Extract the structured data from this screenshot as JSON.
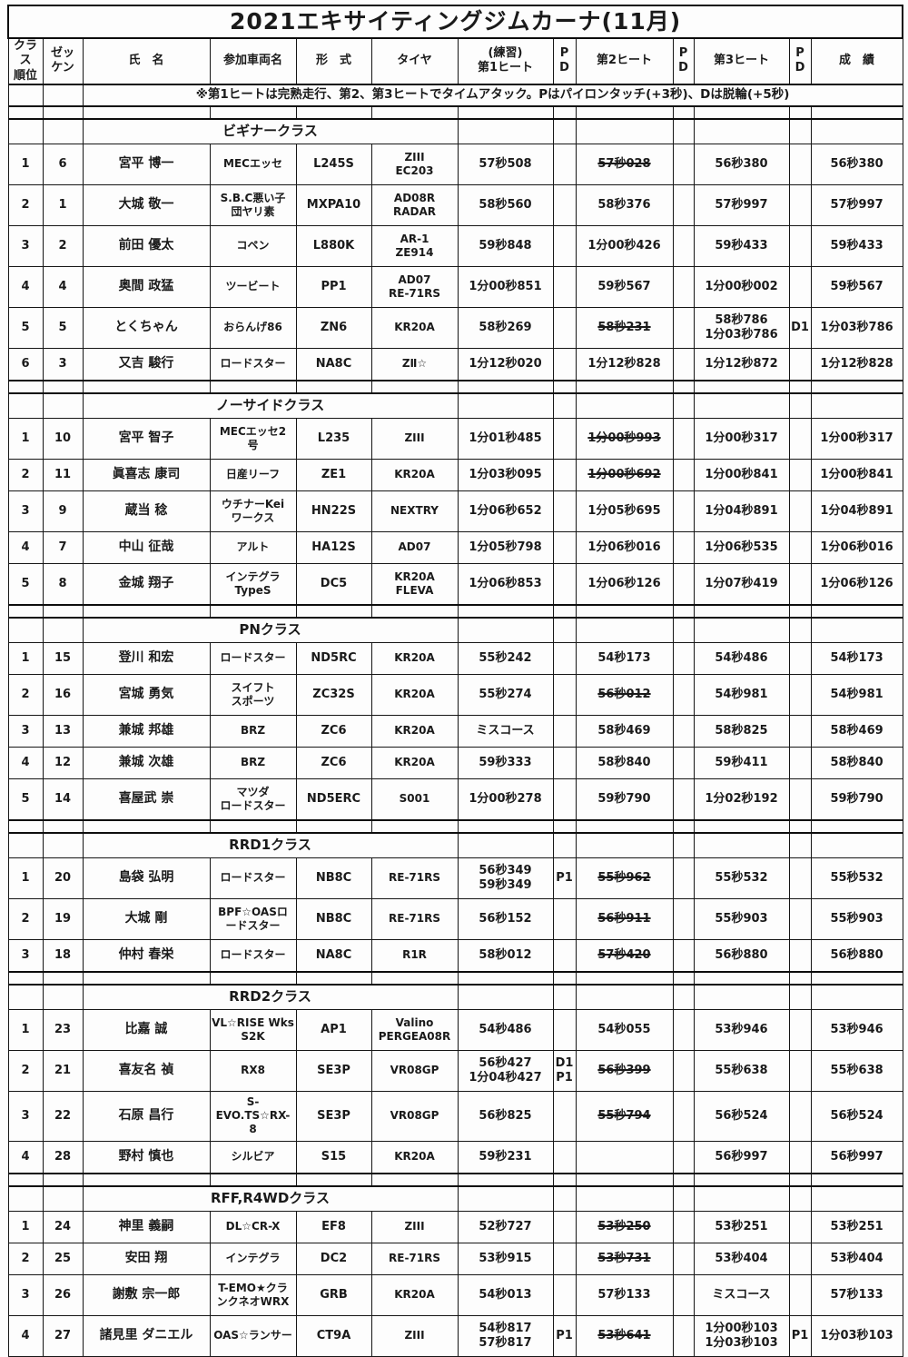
{
  "title": "2021エキサイティングジムカーナ(11月)",
  "note": "※第1ヒートは完熟走行、第2、第3ヒートでタイムアタック。Pはパイロンタッチ(+3秒)、Dは脱輪(+5秒)",
  "columns": [
    "クラス\n順位",
    "ゼッ\nケン",
    "氏　名",
    "参加車両名",
    "形　式",
    "タイヤ",
    "(練習)\n第1ヒート",
    "P\nD",
    "第2ヒート",
    "P\nD",
    "第3ヒート",
    "P\nD",
    "成　績"
  ],
  "column_keys": [
    "rank",
    "no",
    "name",
    "car",
    "model",
    "tire",
    "heat1",
    "pd1",
    "heat2",
    "pd2",
    "heat3",
    "pd3",
    "result"
  ],
  "colors": {
    "background": "#fdfdfd",
    "border": "#161616",
    "text": "#1a1a1a"
  },
  "classes": [
    {
      "name": "ビギナークラス",
      "rows": [
        {
          "rank": "1",
          "no": "6",
          "name": "宮平 博一",
          "car": "MECエッセ",
          "model": "L245S",
          "tire": "ZIII\nEC203",
          "heat1": "57秒508",
          "heat2": "57秒028",
          "strike": [
            "heat2"
          ],
          "heat3": "56秒380",
          "result": "56秒380"
        },
        {
          "rank": "2",
          "no": "1",
          "name": "大城 敬一",
          "car": "S.B.C悪い子\n団ヤリ素",
          "model": "MXPA10",
          "tire": "AD08R\nRADAR",
          "heat1": "58秒560",
          "heat2": "58秒376",
          "heat3": "57秒997",
          "result": "57秒997"
        },
        {
          "rank": "3",
          "no": "2",
          "name": "前田 優太",
          "car": "コペン",
          "model": "L880K",
          "tire": "AR-1\nZE914",
          "heat1": "59秒848",
          "heat2": "1分00秒426",
          "heat3": "59秒433",
          "result": "59秒433"
        },
        {
          "rank": "4",
          "no": "4",
          "name": "奥間 政猛",
          "car": "ツービート",
          "model": "PP1",
          "tire": "AD07\nRE-71RS",
          "heat1": "1分00秒851",
          "heat2": "59秒567",
          "heat3": "1分00秒002",
          "result": "59秒567"
        },
        {
          "rank": "5",
          "no": "5",
          "name": "とくちゃん",
          "car": "おらんげ86",
          "model": "ZN6",
          "tire": "KR20A",
          "heat1": "58秒269",
          "heat2": "58秒231",
          "strike": [
            "heat2"
          ],
          "heat3": "58秒786\n1分03秒786",
          "pd3": "D1",
          "result": "1分03秒786"
        },
        {
          "rank": "6",
          "no": "3",
          "name": "又吉 駿行",
          "car": "ロードスター",
          "model": "NA8C",
          "tire": "ZⅡ☆",
          "heat1": "1分12秒020",
          "heat2": "1分12秒828",
          "heat3": "1分12秒872",
          "result": "1分12秒828"
        }
      ]
    },
    {
      "name": "ノーサイドクラス",
      "rows": [
        {
          "rank": "1",
          "no": "10",
          "name": "宮平 智子",
          "car": "MECエッセ2\n号",
          "model": "L235",
          "tire": "ZIII",
          "heat1": "1分01秒485",
          "heat2": "1分00秒993",
          "strike": [
            "heat2"
          ],
          "heat3": "1分00秒317",
          "result": "1分00秒317"
        },
        {
          "rank": "2",
          "no": "11",
          "name": "眞喜志 康司",
          "car": "日産リーフ",
          "model": "ZE1",
          "tire": "KR20A",
          "heat1": "1分03秒095",
          "heat2": "1分00秒692",
          "strike": [
            "heat2"
          ],
          "heat3": "1分00秒841",
          "result": "1分00秒841"
        },
        {
          "rank": "3",
          "no": "9",
          "name": "蔵当 稔",
          "car": "ウチナーKei\nワークス",
          "model": "HN22S",
          "tire": "NEXTRY",
          "heat1": "1分06秒652",
          "heat2": "1分05秒695",
          "heat3": "1分04秒891",
          "result": "1分04秒891"
        },
        {
          "rank": "4",
          "no": "7",
          "name": "中山 征哉",
          "car": "アルト",
          "model": "HA12S",
          "tire": "AD07",
          "heat1": "1分05秒798",
          "heat2": "1分06秒016",
          "heat3": "1分06秒535",
          "result": "1分06秒016"
        },
        {
          "rank": "5",
          "no": "8",
          "name": "金城 翔子",
          "car": "インテグラ\nTypeS",
          "model": "DC5",
          "tire": "KR20A\nFLEVA",
          "heat1": "1分06秒853",
          "heat2": "1分06秒126",
          "heat3": "1分07秒419",
          "result": "1分06秒126"
        }
      ]
    },
    {
      "name": "PNクラス",
      "rows": [
        {
          "rank": "1",
          "no": "15",
          "name": "登川 和宏",
          "car": "ロードスター",
          "model": "ND5RC",
          "tire": "KR20A",
          "heat1": "55秒242",
          "heat2": "54秒173",
          "heat3": "54秒486",
          "result": "54秒173"
        },
        {
          "rank": "2",
          "no": "16",
          "name": "宮城 勇気",
          "car": "スイフト\nスポーツ",
          "model": "ZC32S",
          "tire": "KR20A",
          "heat1": "55秒274",
          "heat2": "56秒012",
          "strike": [
            "heat2"
          ],
          "heat3": "54秒981",
          "result": "54秒981"
        },
        {
          "rank": "3",
          "no": "13",
          "name": "兼城 邦雄",
          "car": "BRZ",
          "model": "ZC6",
          "tire": "KR20A",
          "heat1": "ミスコース",
          "heat2": "58秒469",
          "heat3": "58秒825",
          "result": "58秒469"
        },
        {
          "rank": "4",
          "no": "12",
          "name": "兼城 次雄",
          "car": "BRZ",
          "model": "ZC6",
          "tire": "KR20A",
          "heat1": "59秒333",
          "heat2": "58秒840",
          "heat3": "59秒411",
          "result": "58秒840"
        },
        {
          "rank": "5",
          "no": "14",
          "name": "喜屋武 崇",
          "car": "マツダ\nロードスター",
          "model": "ND5ERC",
          "tire": "S001",
          "heat1": "1分00秒278",
          "heat2": "59秒790",
          "heat3": "1分02秒192",
          "result": "59秒790"
        }
      ]
    },
    {
      "name": "RRD1クラス",
      "rows": [
        {
          "rank": "1",
          "no": "20",
          "name": "島袋 弘明",
          "car": "ロードスター",
          "model": "NB8C",
          "tire": "RE-71RS",
          "heat1": "56秒349\n59秒349",
          "pd1": "P1",
          "heat2": "55秒962",
          "strike": [
            "heat2"
          ],
          "heat3": "55秒532",
          "result": "55秒532"
        },
        {
          "rank": "2",
          "no": "19",
          "name": "大城 剛",
          "car": "BPF☆OASロ\nードスター",
          "model": "NB8C",
          "tire": "RE-71RS",
          "heat1": "56秒152",
          "heat2": "56秒911",
          "strike": [
            "heat2"
          ],
          "heat3": "55秒903",
          "result": "55秒903"
        },
        {
          "rank": "3",
          "no": "18",
          "name": "仲村 春栄",
          "car": "ロードスター",
          "model": "NA8C",
          "tire": "R1R",
          "heat1": "58秒012",
          "heat2": "57秒420",
          "strike": [
            "heat2"
          ],
          "heat3": "56秒880",
          "result": "56秒880"
        }
      ]
    },
    {
      "name": "RRD2クラス",
      "rows": [
        {
          "rank": "1",
          "no": "23",
          "name": "比嘉 誠",
          "car": "VL☆RISE Wks\nS2K",
          "model": "AP1",
          "tire": "Valino\nPERGEA08R",
          "heat1": "54秒486",
          "heat2": "54秒055",
          "heat3": "53秒946",
          "result": "53秒946"
        },
        {
          "rank": "2",
          "no": "21",
          "name": "喜友名 禎",
          "car": "RX8",
          "model": "SE3P",
          "tire": "VR08GP",
          "heat1": "56秒427\n1分04秒427",
          "pd1": "D1\nP1",
          "heat2": "56秒399",
          "strike": [
            "heat2"
          ],
          "heat3": "55秒638",
          "result": "55秒638"
        },
        {
          "rank": "3",
          "no": "22",
          "name": "石原 昌行",
          "car": "S-\nEVO.TS☆RX-\n8",
          "model": "SE3P",
          "tire": "VR08GP",
          "heat1": "56秒825",
          "heat2": "55秒794",
          "strike": [
            "heat2"
          ],
          "heat3": "56秒524",
          "result": "56秒524"
        },
        {
          "rank": "4",
          "no": "28",
          "name": "野村 慎也",
          "car": "シルビア",
          "model": "S15",
          "tire": "KR20A",
          "heat1": "59秒231",
          "heat2": "",
          "heat3": "56秒997",
          "result": "56秒997"
        }
      ]
    },
    {
      "name": "RFF,R4WDクラス",
      "rows": [
        {
          "rank": "1",
          "no": "24",
          "name": "神里 義嗣",
          "car": "DL☆CR-X",
          "model": "EF8",
          "tire": "ZIII",
          "heat1": "52秒727",
          "heat2": "53秒250",
          "strike": [
            "heat2"
          ],
          "heat3": "53秒251",
          "result": "53秒251"
        },
        {
          "rank": "2",
          "no": "25",
          "name": "安田 翔",
          "car": "インテグラ",
          "model": "DC2",
          "tire": "RE-71RS",
          "heat1": "53秒915",
          "heat2": "53秒731",
          "strike": [
            "heat2"
          ],
          "heat3": "53秒404",
          "result": "53秒404"
        },
        {
          "rank": "3",
          "no": "26",
          "name": "謝敷 宗一郎",
          "car": "T-EMO★クラ\nンクネオWRX",
          "model": "GRB",
          "tire": "KR20A",
          "heat1": "54秒013",
          "heat2": "57秒133",
          "heat3": "ミスコース",
          "result": "57秒133"
        },
        {
          "rank": "4",
          "no": "27",
          "name": "諸見里 ダニエル",
          "car": "OAS☆ランサー",
          "model": "CT9A",
          "tire": "ZIII",
          "heat1": "54秒817\n57秒817",
          "pd1": "P1",
          "heat2": "53秒641",
          "strike": [
            "heat2"
          ],
          "heat3": "1分00秒103\n1分03秒103",
          "pd3": "P1",
          "result": "1分03秒103"
        }
      ]
    }
  ]
}
